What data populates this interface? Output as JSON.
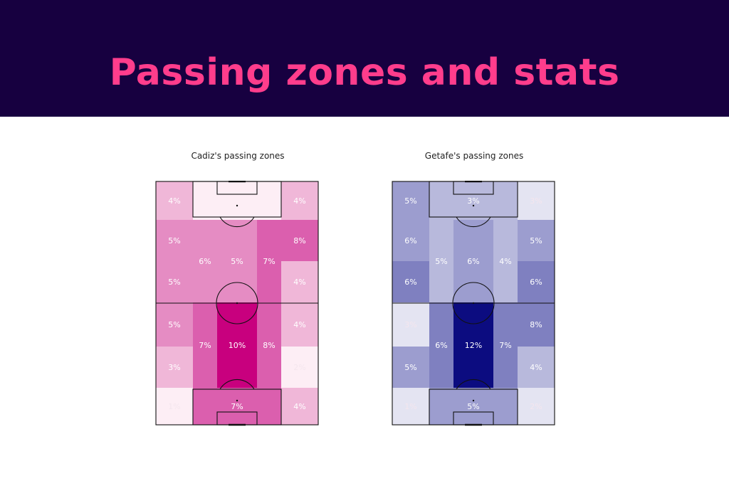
{
  "header": {
    "title": "Passing zones and stats"
  },
  "chart_data": [
    {
      "type": "heatmap",
      "title": "Cadiz's passing zones",
      "colors": [
        "#fdeef5",
        "#f0b7d8",
        "#e58cc3",
        "#db5fae",
        "#c8007e"
      ],
      "rows": [
        [
          {
            "label": "4%",
            "rows": 1,
            "level": 1
          },
          {
            "label": "",
            "rows": 1,
            "level": 0,
            "merge": true
          },
          {
            "label": "4%",
            "rows": 1,
            "level": 1
          }
        ],
        [
          {
            "label": "5%",
            "rows": 1,
            "level": 2
          },
          {
            "label": "6%",
            "rows": 2,
            "level": 2,
            "col": 1
          },
          {
            "label": "5%",
            "rows": 2,
            "level": 2,
            "col": 2
          },
          {
            "label": "7%",
            "rows": 2,
            "level": 3,
            "col": 3
          },
          {
            "label": "8%",
            "rows": 1,
            "level": 3
          }
        ],
        [
          {
            "label": "5%",
            "rows": 1,
            "level": 2
          },
          {
            "label": "4%",
            "rows": 1,
            "level": 1
          }
        ],
        [
          {
            "label": "5%",
            "rows": 1,
            "level": 2
          },
          {
            "label": "7%",
            "rows": 2,
            "level": 3,
            "col": 1
          },
          {
            "label": "10%",
            "rows": 2,
            "level": 4,
            "col": 2
          },
          {
            "label": "8%",
            "rows": 2,
            "level": 3,
            "col": 3
          },
          {
            "label": "4%",
            "rows": 1,
            "level": 1
          }
        ],
        [
          {
            "label": "3%",
            "rows": 1,
            "level": 1
          },
          {
            "label": "2%",
            "rows": 1,
            "level": 0
          }
        ],
        [
          {
            "label": "1%",
            "rows": 1,
            "level": 0
          },
          {
            "label": "7%",
            "rows": 1,
            "level": 3,
            "merge": true
          },
          {
            "label": "4%",
            "rows": 1,
            "level": 1
          }
        ]
      ]
    },
    {
      "type": "heatmap",
      "title": "Getafe's passing zones",
      "colors": [
        "#e4e4f2",
        "#b8b9dc",
        "#9c9dcf",
        "#7f80c0",
        "#0c0c80"
      ],
      "rows": [
        [
          {
            "label": "5%",
            "rows": 1,
            "level": 2
          },
          {
            "label": "3%",
            "rows": 1,
            "level": 1,
            "merge": true
          },
          {
            "label": "3%",
            "rows": 1,
            "level": 0
          }
        ],
        [
          {
            "label": "6%",
            "rows": 1,
            "level": 2
          },
          {
            "label": "5%",
            "rows": 2,
            "level": 1,
            "col": 1
          },
          {
            "label": "6%",
            "rows": 2,
            "level": 2,
            "col": 2
          },
          {
            "label": "4%",
            "rows": 2,
            "level": 1,
            "col": 3
          },
          {
            "label": "5%",
            "rows": 1,
            "level": 2
          }
        ],
        [
          {
            "label": "6%",
            "rows": 1,
            "level": 3
          },
          {
            "label": "6%",
            "rows": 1,
            "level": 3
          }
        ],
        [
          {
            "label": "3%",
            "rows": 1,
            "level": 0
          },
          {
            "label": "6%",
            "rows": 2,
            "level": 3,
            "col": 1
          },
          {
            "label": "12%",
            "rows": 2,
            "level": 4,
            "col": 2
          },
          {
            "label": "7%",
            "rows": 2,
            "level": 3,
            "col": 3
          },
          {
            "label": "8%",
            "rows": 1,
            "level": 3
          }
        ],
        [
          {
            "label": "5%",
            "rows": 1,
            "level": 2
          },
          {
            "label": "4%",
            "rows": 1,
            "level": 1
          }
        ],
        [
          {
            "label": "1%",
            "rows": 1,
            "level": 0
          },
          {
            "label": "5%",
            "rows": 1,
            "level": 2,
            "merge": true
          },
          {
            "label": "2%",
            "rows": 1,
            "level": 0
          }
        ]
      ]
    }
  ]
}
